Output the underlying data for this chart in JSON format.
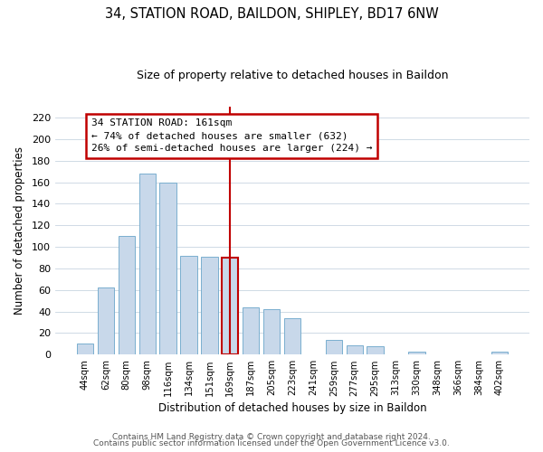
{
  "title": "34, STATION ROAD, BAILDON, SHIPLEY, BD17 6NW",
  "subtitle": "Size of property relative to detached houses in Baildon",
  "xlabel": "Distribution of detached houses by size in Baildon",
  "ylabel": "Number of detached properties",
  "categories": [
    "44sqm",
    "62sqm",
    "80sqm",
    "98sqm",
    "116sqm",
    "134sqm",
    "151sqm",
    "169sqm",
    "187sqm",
    "205sqm",
    "223sqm",
    "241sqm",
    "259sqm",
    "277sqm",
    "295sqm",
    "313sqm",
    "330sqm",
    "348sqm",
    "366sqm",
    "384sqm",
    "402sqm"
  ],
  "values": [
    10,
    62,
    110,
    168,
    160,
    92,
    91,
    90,
    44,
    42,
    34,
    0,
    14,
    9,
    8,
    0,
    3,
    0,
    0,
    0,
    3
  ],
  "bar_color": "#c8d8ea",
  "bar_edge_color": "#7aafcf",
  "highlight_index": 7,
  "highlight_edge_color": "#c00000",
  "vline_color": "#c00000",
  "ylim": [
    0,
    230
  ],
  "yticks": [
    0,
    20,
    40,
    60,
    80,
    100,
    120,
    140,
    160,
    180,
    200,
    220
  ],
  "annotation_title": "34 STATION ROAD: 161sqm",
  "annotation_line1": "← 74% of detached houses are smaller (632)",
  "annotation_line2": "26% of semi-detached houses are larger (224) →",
  "annotation_box_edge": "#c00000",
  "footer1": "Contains HM Land Registry data © Crown copyright and database right 2024.",
  "footer2": "Contains public sector information licensed under the Open Government Licence v3.0.",
  "background_color": "#ffffff",
  "grid_color": "#c8d4e0"
}
